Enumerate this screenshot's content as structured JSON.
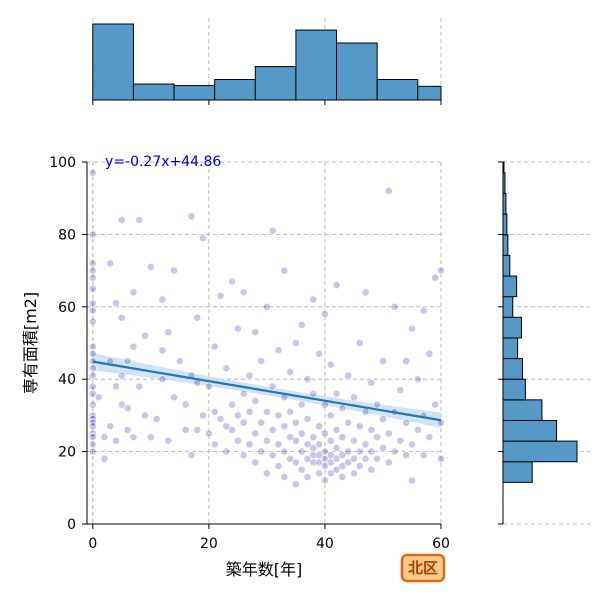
{
  "chart_data": {
    "type": "scatter",
    "title": "",
    "xlabel": "築年数[年]",
    "ylabel": "専有面積[m2]",
    "xlim": [
      -1,
      60
    ],
    "ylim": [
      0,
      100
    ],
    "xticks": [
      0,
      20,
      40,
      60
    ],
    "yticks": [
      0,
      20,
      40,
      60,
      80,
      100
    ],
    "grid": true,
    "annotation": "y=-0.27x+44.86",
    "badge": "北区",
    "regression": {
      "slope": -0.27,
      "intercept": 44.86
    },
    "colors": {
      "points": "#0000aa",
      "line": "#1f77b4",
      "hist": "#5599c8",
      "band": "#c6dbef"
    },
    "marginal_x": {
      "bin_edges": [
        0,
        7,
        14,
        21,
        28,
        35,
        42,
        49,
        56,
        60
      ],
      "counts": [
        100,
        21,
        19,
        27,
        44,
        92,
        75,
        27,
        18
      ]
    },
    "marginal_y": {
      "bin_edges": [
        11.5,
        17.2,
        22.9,
        28.6,
        34.3,
        40.0,
        45.7,
        51.4,
        57.1,
        62.8,
        68.5,
        74.2,
        79.9,
        85.6,
        91.3,
        97.0,
        100
      ],
      "counts": [
        30,
        76,
        55,
        40,
        23,
        20,
        15,
        19,
        10,
        14,
        7,
        5,
        4,
        3,
        2,
        1
      ]
    },
    "points": [
      [
        0,
        97
      ],
      [
        0,
        80
      ],
      [
        0,
        72
      ],
      [
        0,
        70
      ],
      [
        0,
        68
      ],
      [
        0,
        65
      ],
      [
        0,
        61
      ],
      [
        0,
        59
      ],
      [
        0,
        56
      ],
      [
        0,
        49
      ],
      [
        0,
        47
      ],
      [
        0,
        45
      ],
      [
        0,
        43
      ],
      [
        0,
        41
      ],
      [
        0,
        38
      ],
      [
        0,
        36
      ],
      [
        0,
        33
      ],
      [
        0,
        30
      ],
      [
        0,
        29
      ],
      [
        0,
        28
      ],
      [
        0,
        27
      ],
      [
        0,
        25
      ],
      [
        0,
        24
      ],
      [
        0,
        22
      ],
      [
        0,
        20
      ],
      [
        1,
        35
      ],
      [
        2,
        18
      ],
      [
        2,
        24
      ],
      [
        3,
        27
      ],
      [
        3,
        45
      ],
      [
        3,
        72
      ],
      [
        4,
        23
      ],
      [
        4,
        38
      ],
      [
        4,
        61
      ],
      [
        5,
        33
      ],
      [
        5,
        41
      ],
      [
        5,
        57
      ],
      [
        5,
        84
      ],
      [
        6,
        26
      ],
      [
        6,
        32
      ],
      [
        6,
        45
      ],
      [
        7,
        24
      ],
      [
        7,
        49
      ],
      [
        7,
        64
      ],
      [
        8,
        38
      ],
      [
        8,
        84
      ],
      [
        9,
        30
      ],
      [
        9,
        52
      ],
      [
        10,
        24
      ],
      [
        10,
        71
      ],
      [
        11,
        29
      ],
      [
        12,
        40
      ],
      [
        12,
        48
      ],
      [
        12,
        62
      ],
      [
        13,
        23
      ],
      [
        13,
        53
      ],
      [
        14,
        35
      ],
      [
        14,
        70
      ],
      [
        15,
        45
      ],
      [
        16,
        26
      ],
      [
        16,
        33
      ],
      [
        17,
        19
      ],
      [
        17,
        41
      ],
      [
        17,
        85
      ],
      [
        18,
        26
      ],
      [
        18,
        39
      ],
      [
        18,
        57
      ],
      [
        19,
        30
      ],
      [
        19,
        79
      ],
      [
        20,
        25
      ],
      [
        20,
        38
      ],
      [
        21,
        22
      ],
      [
        21,
        31
      ],
      [
        21,
        49
      ],
      [
        22,
        29
      ],
      [
        22,
        63
      ],
      [
        23,
        20
      ],
      [
        23,
        27
      ],
      [
        23,
        43
      ],
      [
        24,
        26
      ],
      [
        24,
        33
      ],
      [
        24,
        67
      ],
      [
        25,
        23
      ],
      [
        25,
        30
      ],
      [
        25,
        54
      ],
      [
        26,
        19
      ],
      [
        26,
        28
      ],
      [
        26,
        36
      ],
      [
        26,
        64
      ],
      [
        27,
        22
      ],
      [
        27,
        31
      ],
      [
        27,
        41
      ],
      [
        28,
        17
      ],
      [
        28,
        25
      ],
      [
        28,
        34
      ],
      [
        28,
        53
      ],
      [
        29,
        20
      ],
      [
        29,
        28
      ],
      [
        29,
        45
      ],
      [
        30,
        14
      ],
      [
        30,
        23
      ],
      [
        30,
        31
      ],
      [
        30,
        60
      ],
      [
        31,
        19
      ],
      [
        31,
        26
      ],
      [
        31,
        38
      ],
      [
        31,
        81
      ],
      [
        32,
        16
      ],
      [
        32,
        22
      ],
      [
        32,
        30
      ],
      [
        32,
        48
      ],
      [
        33,
        13
      ],
      [
        33,
        20
      ],
      [
        33,
        27
      ],
      [
        33,
        35
      ],
      [
        33,
        70
      ],
      [
        34,
        18
      ],
      [
        34,
        24
      ],
      [
        34,
        31
      ],
      [
        34,
        42
      ],
      [
        35,
        11
      ],
      [
        35,
        17
      ],
      [
        35,
        23
      ],
      [
        35,
        28
      ],
      [
        35,
        50
      ],
      [
        36,
        15
      ],
      [
        36,
        20
      ],
      [
        36,
        25
      ],
      [
        36,
        33
      ],
      [
        36,
        55
      ],
      [
        37,
        13
      ],
      [
        37,
        18
      ],
      [
        37,
        22
      ],
      [
        37,
        29
      ],
      [
        37,
        40
      ],
      [
        38,
        17
      ],
      [
        38,
        19
      ],
      [
        38,
        21
      ],
      [
        38,
        24
      ],
      [
        38,
        36
      ],
      [
        38,
        62
      ],
      [
        39,
        14
      ],
      [
        39,
        17
      ],
      [
        39,
        19
      ],
      [
        39,
        22
      ],
      [
        39,
        27
      ],
      [
        39,
        47
      ],
      [
        40,
        12
      ],
      [
        40,
        16
      ],
      [
        40,
        18
      ],
      [
        40,
        20
      ],
      [
        40,
        25
      ],
      [
        40,
        33
      ],
      [
        40,
        58
      ],
      [
        41,
        14
      ],
      [
        41,
        17
      ],
      [
        41,
        19
      ],
      [
        41,
        23
      ],
      [
        41,
        30
      ],
      [
        41,
        44
      ],
      [
        42,
        15
      ],
      [
        42,
        18
      ],
      [
        42,
        21
      ],
      [
        42,
        26
      ],
      [
        42,
        36
      ],
      [
        42,
        66
      ],
      [
        43,
        13
      ],
      [
        43,
        16
      ],
      [
        43,
        19
      ],
      [
        43,
        24
      ],
      [
        43,
        32
      ],
      [
        44,
        17
      ],
      [
        44,
        20
      ],
      [
        44,
        28
      ],
      [
        44,
        41
      ],
      [
        45,
        14
      ],
      [
        45,
        18
      ],
      [
        45,
        23
      ],
      [
        45,
        35
      ],
      [
        46,
        16
      ],
      [
        46,
        20
      ],
      [
        46,
        27
      ],
      [
        46,
        50
      ],
      [
        47,
        18
      ],
      [
        47,
        22
      ],
      [
        47,
        31
      ],
      [
        47,
        64
      ],
      [
        48,
        15
      ],
      [
        48,
        20
      ],
      [
        48,
        26
      ],
      [
        48,
        39
      ],
      [
        49,
        18
      ],
      [
        49,
        24
      ],
      [
        49,
        33
      ],
      [
        50,
        21
      ],
      [
        50,
        29
      ],
      [
        50,
        45
      ],
      [
        51,
        17
      ],
      [
        51,
        25
      ],
      [
        51,
        92
      ],
      [
        52,
        20
      ],
      [
        52,
        31
      ],
      [
        52,
        60
      ],
      [
        53,
        23
      ],
      [
        53,
        37
      ],
      [
        54,
        19
      ],
      [
        54,
        28
      ],
      [
        54,
        45
      ],
      [
        55,
        12
      ],
      [
        55,
        22
      ],
      [
        55,
        54
      ],
      [
        56,
        26
      ],
      [
        56,
        40
      ],
      [
        57,
        19
      ],
      [
        57,
        30
      ],
      [
        57,
        59
      ],
      [
        58,
        24
      ],
      [
        58,
        47
      ],
      [
        59,
        33
      ],
      [
        59,
        68
      ],
      [
        60,
        18
      ],
      [
        60,
        28
      ],
      [
        60,
        70
      ]
    ]
  }
}
